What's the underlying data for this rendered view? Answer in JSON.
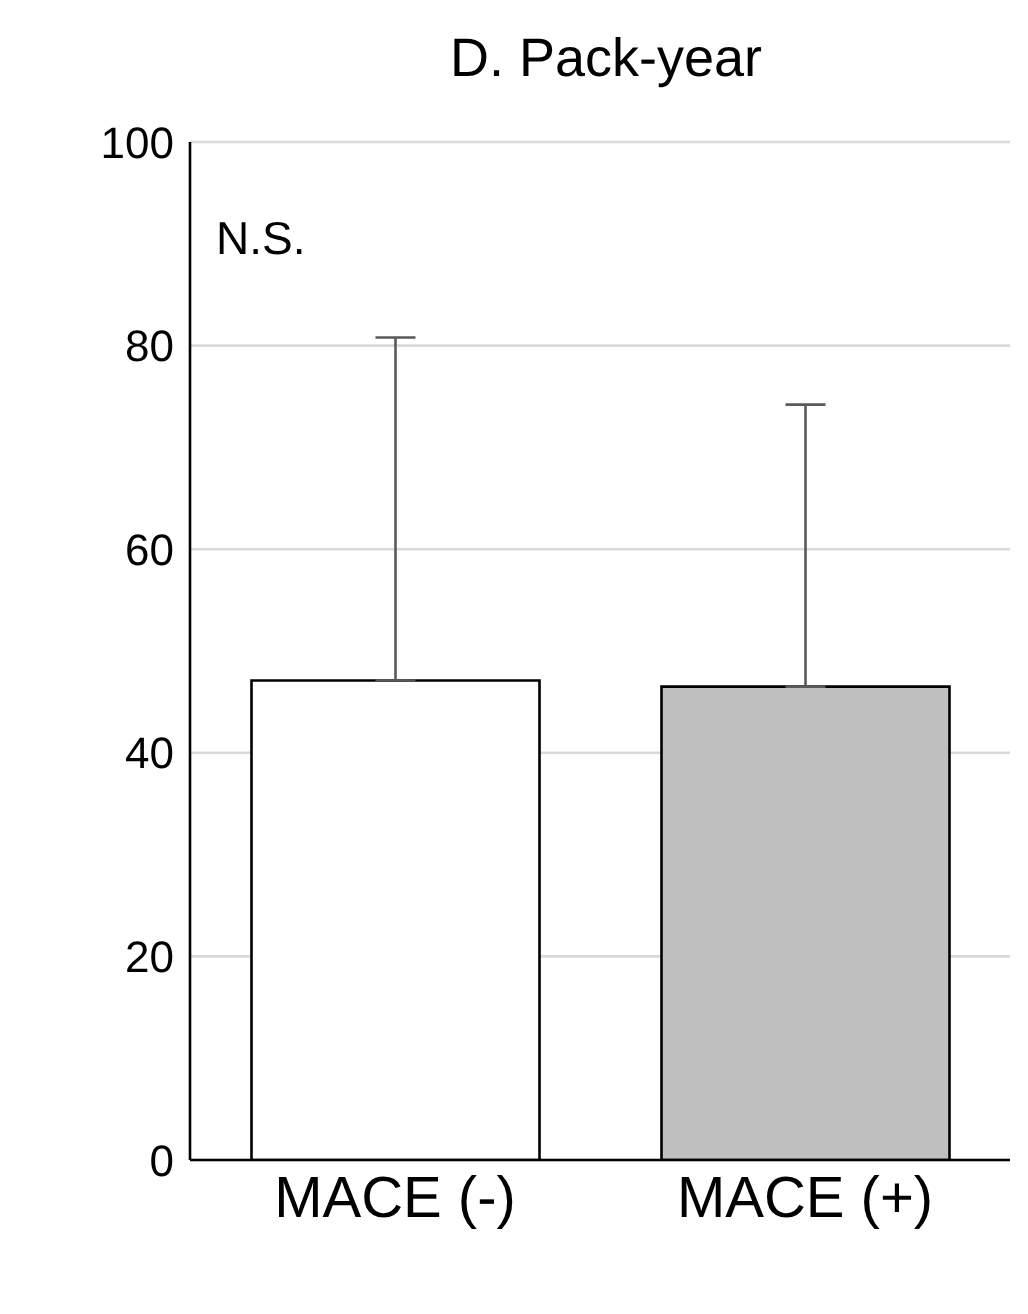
{
  "chart_data": {
    "type": "bar",
    "title": "D. Pack-year",
    "categories": [
      "MACE (-)",
      "MACE (+)"
    ],
    "values": [
      47.1,
      46.5
    ],
    "colors": [
      "#ffffff",
      "#bfbfbf"
    ],
    "errors": [
      [
        47.1,
        80.8
      ],
      [
        46.5,
        74.2
      ]
    ],
    "ylim": [
      0,
      100
    ],
    "yticks": [
      0,
      20,
      40,
      60,
      80,
      100
    ],
    "grid": "y",
    "annotations": [
      "N.S."
    ]
  }
}
